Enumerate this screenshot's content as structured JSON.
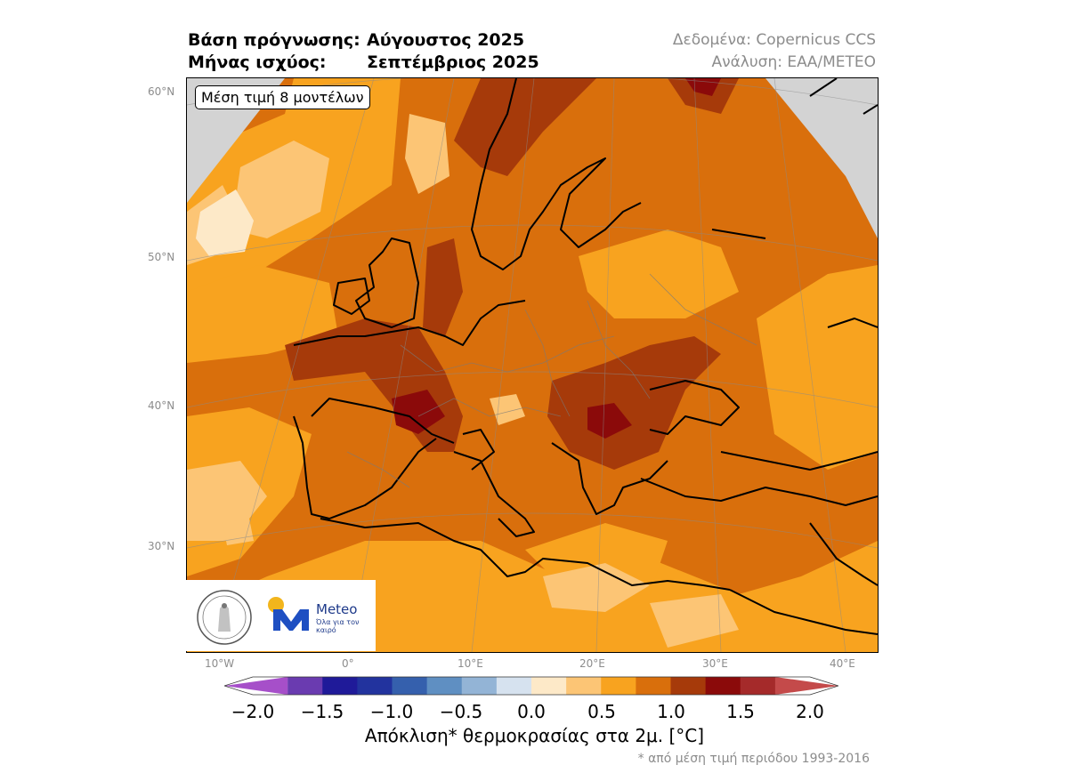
{
  "header": {
    "base_label": "Βάση πρόγνωσης:",
    "base_value": "Αύγουστος 2025",
    "month_label": "Μήνας ισχύος:",
    "month_value": "Σεπτέμβριος 2025",
    "data_source": "Δεδομένα: Copernicus CCS",
    "analysis": "Ανάλυση: ΕΑΑ/METEO"
  },
  "badge": "Μέση τιμή 8 μοντέλων",
  "lat_labels": [
    "60°N",
    "50°N",
    "40°N",
    "30°N"
  ],
  "lon_labels": [
    "10°W",
    "0°",
    "10°E",
    "20°E",
    "30°E",
    "40°E"
  ],
  "logo": {
    "brand": "Meteo",
    "tagline": "Όλα για τον καιρό",
    "observatory_icon": "observatory-seal-icon",
    "meteo_icon": "meteo-m-logo-icon"
  },
  "colorbar": {
    "ticks": [
      "−2.0",
      "−1.5",
      "−1.0",
      "−0.5",
      "0.0",
      "0.5",
      "1.0",
      "1.5",
      "2.0"
    ],
    "colors": [
      "#a64fc9",
      "#6a3bb0",
      "#1f1a99",
      "#22339e",
      "#3560ad",
      "#5f8fc2",
      "#93b4d6",
      "#d6e2ef",
      "#fde9c8",
      "#fcc575",
      "#f8a31f",
      "#d96f0c",
      "#a63a0a",
      "#8b0a0a",
      "#a52a2a",
      "#c44a4a"
    ],
    "label": "Απόκλιση* θερμοκρασίας στα 2μ. [°C]",
    "footnote": "* από μέση τιμή περιόδου 1993-2016"
  }
}
